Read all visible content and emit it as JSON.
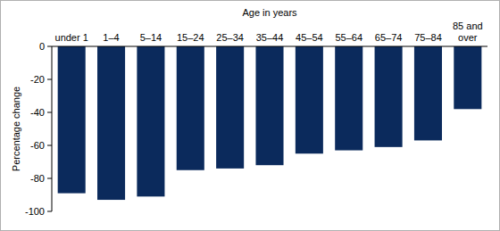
{
  "chart_data": {
    "type": "bar",
    "x_label": "Age in years",
    "y_label": "Percentage change",
    "categories": [
      "under 1",
      "1–4",
      "5–14",
      "15–24",
      "25–34",
      "35–44",
      "45–54",
      "55–64",
      "65–74",
      "75–84",
      "85 and over"
    ],
    "values": [
      -89,
      -93,
      -91,
      -75,
      -74,
      -72,
      -65,
      -63,
      -61,
      -57,
      -38
    ],
    "color": "#0b2a5c",
    "ylim": [
      -100,
      0
    ],
    "yticks": [
      0,
      -20,
      -40,
      -60,
      -80,
      -100
    ],
    "grid": false
  }
}
